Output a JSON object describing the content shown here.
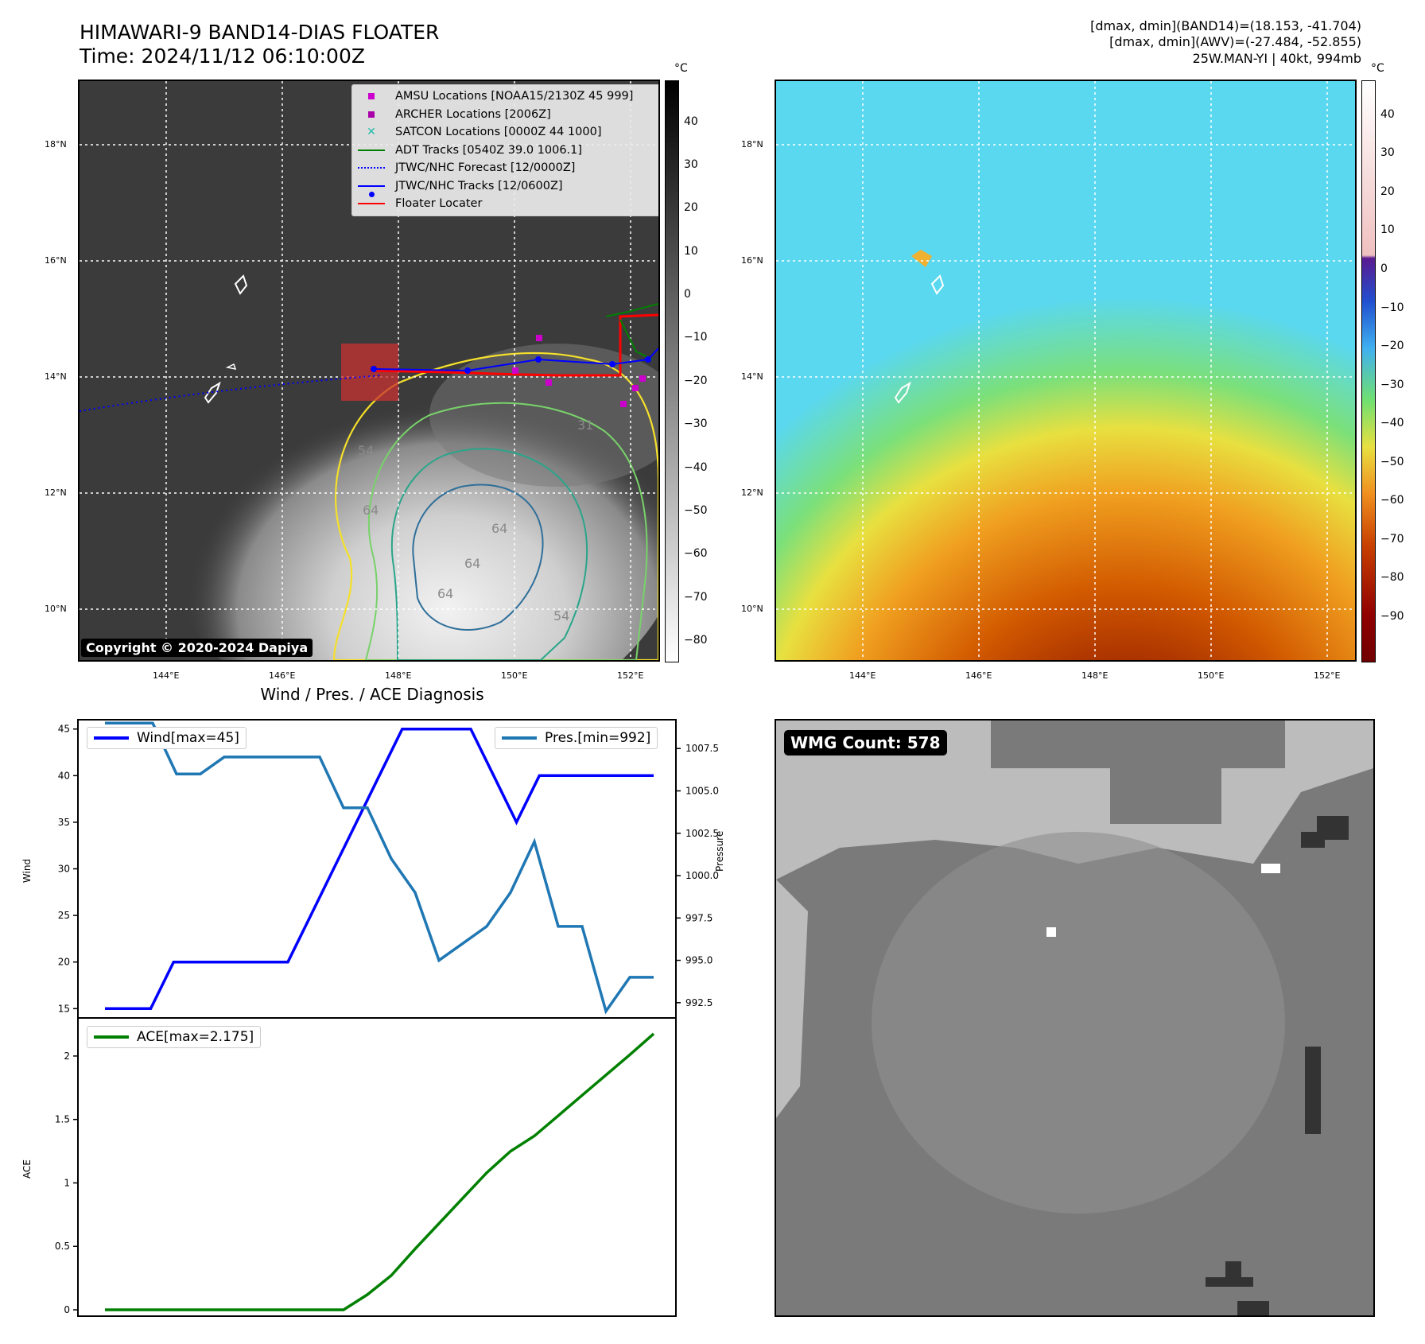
{
  "header": {
    "title_line1": "HIMAWARI-9 BAND14-DIAS FLOATER",
    "title_line2": "Time: 2024/11/12 06:10:00Z",
    "meta_line1": "[dmax, dmin](BAND14)=(18.153, -41.704)",
    "meta_line2": "[dmax, dmin](AWV)=(-27.484, -52.855)",
    "meta_line3": "25W.MAN-YI | 40kt, 994mb"
  },
  "map_axes": {
    "lon_labels": [
      "144°E",
      "146°E",
      "148°E",
      "150°E",
      "152°E"
    ],
    "lat_labels": [
      "18°N",
      "16°N",
      "14°N",
      "12°N",
      "10°N"
    ]
  },
  "ir_panel": {
    "colorbar_unit": "°C",
    "colorbar_ticks": [
      "40",
      "30",
      "20",
      "10",
      "0",
      "−10",
      "−20",
      "−30",
      "−40",
      "−50",
      "−60",
      "−70",
      "−80"
    ],
    "legend": [
      {
        "label": "AMSU Locations [NOAA15/2130Z 45 999]",
        "marker": "square",
        "color": "#cc00cc"
      },
      {
        "label": "ARCHER Locations [2006Z]",
        "marker": "square",
        "color": "#aa00aa"
      },
      {
        "label": "SATCON Locations [0000Z 44 1000]",
        "marker": "x",
        "color": "#22bbaa"
      },
      {
        "label": "ADT Tracks [0540Z 39.0 1006.1]",
        "marker": "line",
        "color": "#008000"
      },
      {
        "label": "JTWC/NHC Forecast [12/0000Z]",
        "marker": "dotted",
        "color": "#0000ff"
      },
      {
        "label": "JTWC/NHC Tracks [12/0600Z]",
        "marker": "line-dot",
        "color": "#0000ff"
      },
      {
        "label": "Floater Locater",
        "marker": "line",
        "color": "#ff0000"
      }
    ],
    "contour_labels": [
      "54",
      "64",
      "64",
      "64",
      "54",
      "31",
      "64"
    ],
    "copyright": "Copyright © 2020-2024 Dapiya"
  },
  "wv_panel": {
    "colorbar_unit": "°C",
    "colorbar_ticks": [
      "40",
      "30",
      "20",
      "10",
      "0",
      "−10",
      "−20",
      "−30",
      "−40",
      "−50",
      "−60",
      "−70",
      "−80",
      "−90"
    ]
  },
  "diagnosis": {
    "title": "Wind / Pres. / ACE Diagnosis",
    "wind_axis_label": "Wind",
    "pressure_axis_label": "Pressure",
    "ace_axis_label": "ACE",
    "wind_legend": "Wind[max=45]",
    "pres_legend": "Pres.[min=992]",
    "ace_legend": "ACE[max=2.175]"
  },
  "wmg_panel": {
    "label": "WMG Count: 578"
  },
  "chart_data": [
    {
      "type": "line",
      "title": "Wind / Pres. / ACE Diagnosis",
      "ylabel": "Wind",
      "ylim": [
        14,
        46
      ],
      "yticks": [
        15,
        20,
        25,
        30,
        35,
        40,
        45
      ],
      "series": [
        {
          "name": "Wind[max=45]",
          "color": "#0000ff",
          "values": [
            15,
            15,
            15,
            20,
            20,
            20,
            20,
            20,
            20,
            25,
            30,
            35,
            40,
            45,
            45,
            45,
            45,
            40,
            35,
            40,
            40,
            40,
            40,
            40,
            40
          ]
        }
      ]
    },
    {
      "type": "line",
      "ylabel": "Pressure",
      "ylim": [
        991.6,
        1009.2
      ],
      "yticks": [
        992.5,
        995.0,
        997.5,
        1000.0,
        1002.5,
        1005.0,
        1007.5
      ],
      "series": [
        {
          "name": "Pres.[min=992]",
          "color": "#1f77b4",
          "values": [
            1009,
            1009,
            1009,
            1006,
            1006,
            1007,
            1007,
            1007,
            1007,
            1007,
            1004,
            1004,
            1001,
            999,
            995,
            996,
            997,
            999,
            1002,
            997,
            997,
            992,
            994,
            994
          ]
        }
      ]
    },
    {
      "type": "line",
      "ylabel": "ACE",
      "ylim": [
        -0.05,
        2.3
      ],
      "yticks": [
        0.0,
        0.5,
        1.0,
        1.5,
        2.0
      ],
      "series": [
        {
          "name": "ACE[max=2.175]",
          "color": "#008000",
          "values": [
            0,
            0,
            0,
            0,
            0,
            0,
            0,
            0,
            0,
            0,
            0,
            0.12,
            0.27,
            0.48,
            0.68,
            0.88,
            1.08,
            1.25,
            1.37,
            1.53,
            1.69,
            1.85,
            2.01,
            2.175
          ]
        }
      ]
    }
  ]
}
